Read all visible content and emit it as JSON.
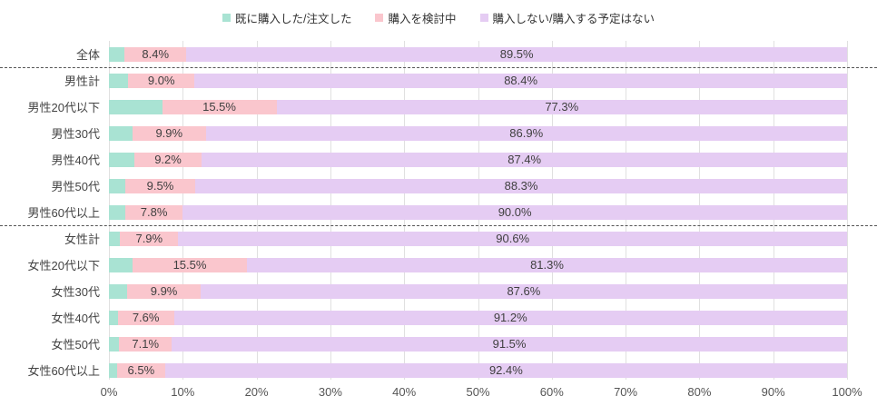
{
  "legend": [
    {
      "label": "既に購入した/注文した",
      "color": "#a9e3d3"
    },
    {
      "label": "購入を検討中",
      "color": "#fac6cd"
    },
    {
      "label": "購入しない/購入する予定はない",
      "color": "#e5ccf3"
    }
  ],
  "chart_data": {
    "type": "bar",
    "orientation": "horizontal",
    "stacked": true,
    "unit": "%",
    "title": "",
    "xlabel": "",
    "ylabel": "",
    "xlim": [
      0,
      100
    ],
    "grid": true,
    "legend_position": "top",
    "categories": [
      "全体",
      "男性計",
      "男性20代以下",
      "男性30代",
      "男性40代",
      "男性50代",
      "男性60代以上",
      "女性計",
      "女性20代以下",
      "女性30代",
      "女性40代",
      "女性50代",
      "女性60代以上"
    ],
    "series": [
      {
        "name": "既に購入した/注文した",
        "color": "#a9e3d3",
        "labels_visible": false,
        "values": [
          2.1,
          2.6,
          7.2,
          3.2,
          3.4,
          2.2,
          2.2,
          1.5,
          3.2,
          2.5,
          1.2,
          1.4,
          1.1
        ]
      },
      {
        "name": "購入を検討中",
        "color": "#fac6cd",
        "labels_visible": true,
        "values": [
          8.4,
          9.0,
          15.5,
          9.9,
          9.2,
          9.5,
          7.8,
          7.9,
          15.5,
          9.9,
          7.6,
          7.1,
          6.5
        ]
      },
      {
        "name": "購入しない/購入する予定はない",
        "color": "#e5ccf3",
        "labels_visible": true,
        "values": [
          89.5,
          88.4,
          77.3,
          86.9,
          87.4,
          88.3,
          90.0,
          90.6,
          81.3,
          87.6,
          91.2,
          91.5,
          92.4
        ]
      }
    ],
    "separators_after_category_index": [
      0,
      6
    ],
    "x_ticks": [
      "0%",
      "10%",
      "20%",
      "30%",
      "40%",
      "50%",
      "60%",
      "70%",
      "80%",
      "90%",
      "100%"
    ]
  }
}
